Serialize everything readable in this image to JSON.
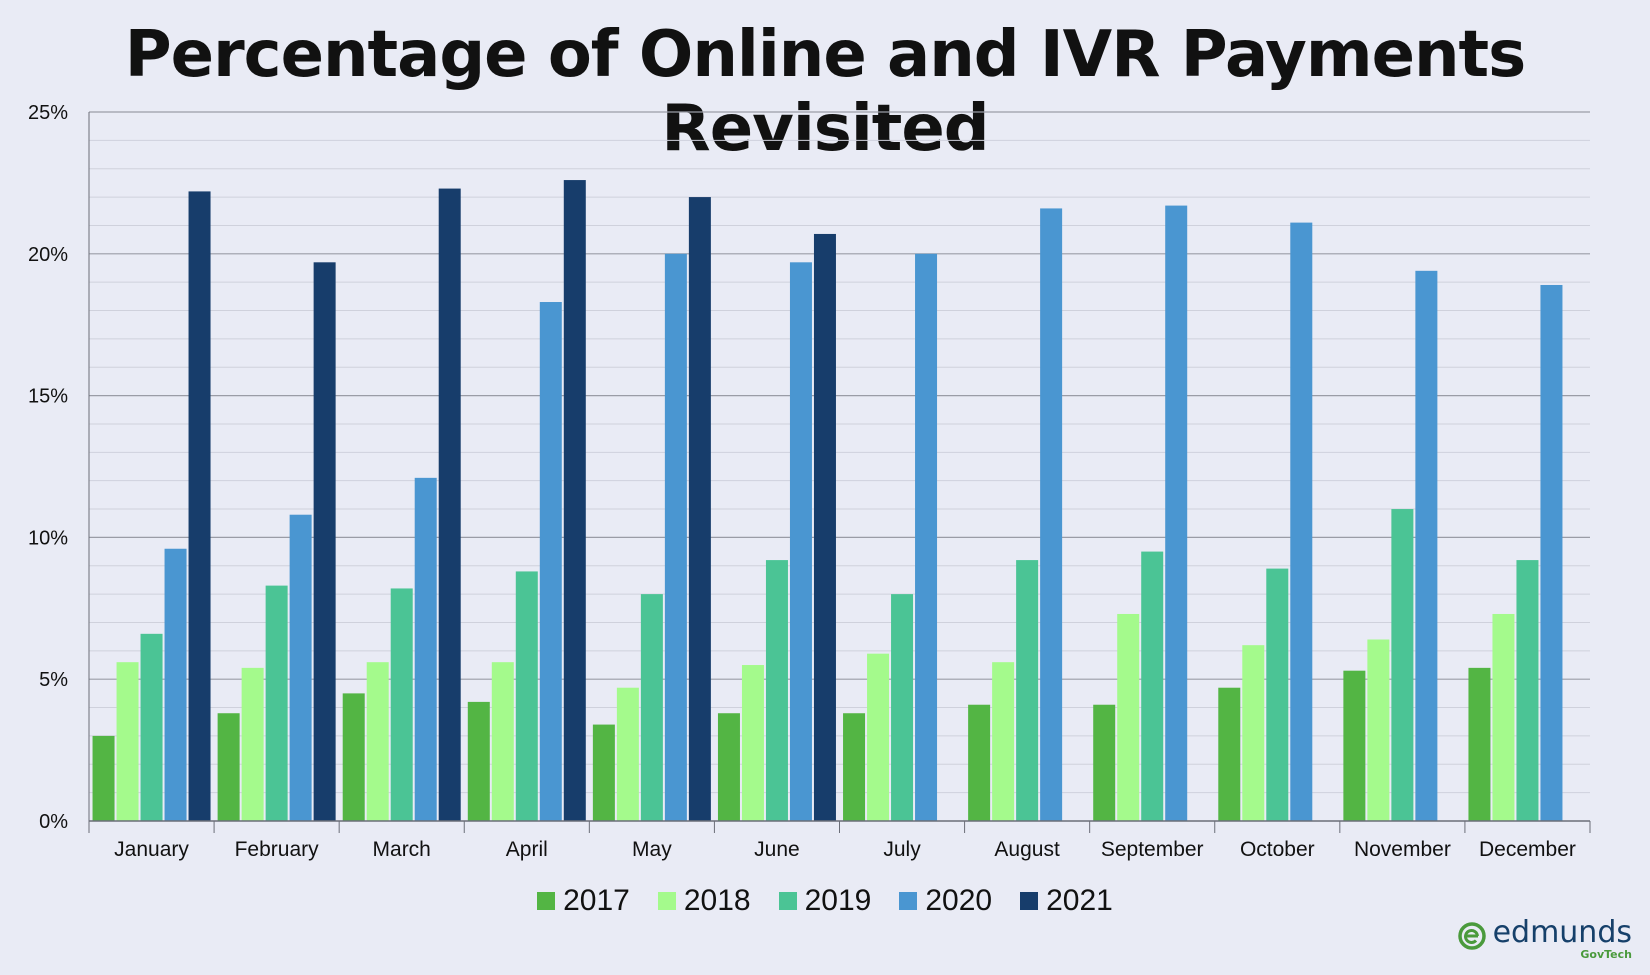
{
  "chart_data": {
    "type": "bar",
    "title": "Percentage of Online and IVR Payments Revisited",
    "xlabel": "",
    "ylabel": "",
    "categories": [
      "January",
      "February",
      "March",
      "April",
      "May",
      "June",
      "July",
      "August",
      "September",
      "October",
      "November",
      "December"
    ],
    "ylim": [
      0,
      25
    ],
    "yticks": [
      "0%",
      "5%",
      "10%",
      "15%",
      "20%",
      "25%"
    ],
    "grid": true,
    "legend_position": "bottom",
    "series": [
      {
        "name": "2017",
        "color": "#53b544",
        "values": [
          3.0,
          3.8,
          4.5,
          4.2,
          3.4,
          3.8,
          3.8,
          4.1,
          4.1,
          4.7,
          5.3,
          5.4
        ]
      },
      {
        "name": "2018",
        "color": "#a4fa8c",
        "values": [
          5.6,
          5.4,
          5.6,
          5.6,
          4.7,
          5.5,
          5.9,
          5.6,
          7.3,
          6.2,
          6.4,
          7.3
        ]
      },
      {
        "name": "2019",
        "color": "#4bc495",
        "values": [
          6.6,
          8.3,
          8.2,
          8.8,
          8.0,
          9.2,
          8.0,
          9.2,
          9.5,
          8.9,
          11.0,
          9.2
        ]
      },
      {
        "name": "2020",
        "color": "#4a96d1",
        "values": [
          9.6,
          10.8,
          12.1,
          18.3,
          20.0,
          19.7,
          20.0,
          21.6,
          21.7,
          21.1,
          19.4,
          18.9
        ]
      },
      {
        "name": "2021",
        "color": "#173d6b",
        "values": [
          22.2,
          19.7,
          22.3,
          22.6,
          22.0,
          20.7,
          null,
          null,
          null,
          null,
          null,
          null
        ]
      }
    ]
  },
  "brand": {
    "name": "edmunds",
    "sub": "GovTech"
  }
}
